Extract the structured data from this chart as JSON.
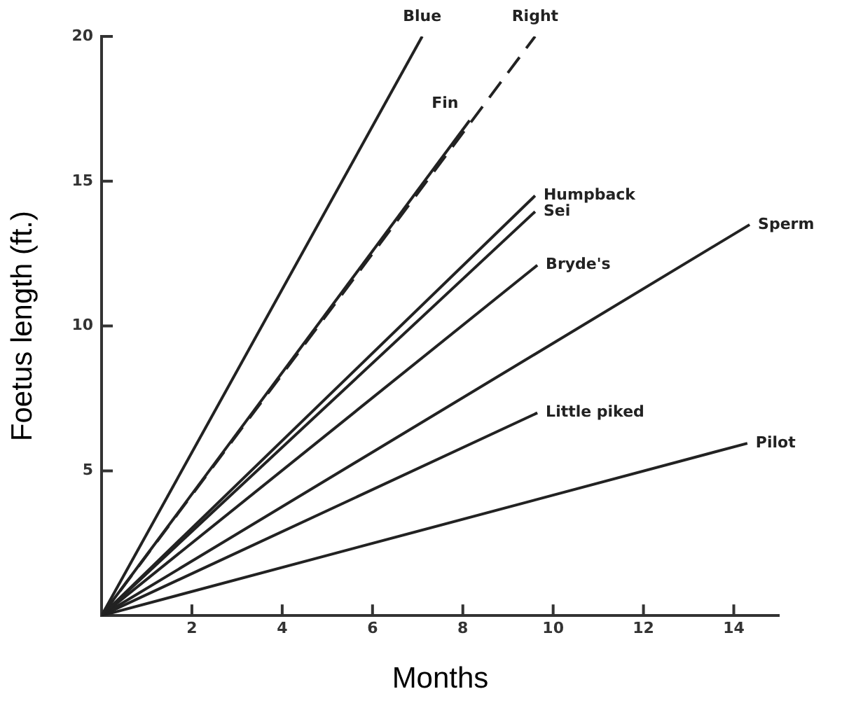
{
  "chart_data": {
    "type": "line",
    "xlabel": "Months",
    "ylabel": "Foetus length (ft.)",
    "xlim": [
      0,
      15
    ],
    "ylim": [
      0,
      20
    ],
    "xticks": [
      2,
      4,
      6,
      8,
      10,
      12,
      14
    ],
    "yticks": [
      5,
      10,
      15,
      20
    ],
    "grid": false,
    "legend": false,
    "marker": "none",
    "series": [
      {
        "name": "Blue",
        "color": "#222222",
        "x": [
          0,
          7.1
        ],
        "values": [
          0,
          20
        ]
      },
      {
        "name": "Right",
        "color": "#222222",
        "x": [
          0,
          9.6
        ],
        "values": [
          0,
          20
        ],
        "line_style": "dashed"
      },
      {
        "name": "Fin",
        "color": "#222222",
        "x": [
          0,
          8.15
        ],
        "values": [
          0,
          17.1
        ]
      },
      {
        "name": "Humpback",
        "color": "#222222",
        "x": [
          0,
          9.6
        ],
        "values": [
          0,
          14.5
        ]
      },
      {
        "name": "Sei",
        "color": "#222222",
        "x": [
          0,
          9.6
        ],
        "values": [
          0,
          13.95
        ]
      },
      {
        "name": "Bryde's",
        "color": "#222222",
        "x": [
          0,
          9.65
        ],
        "values": [
          0,
          12.1
        ]
      },
      {
        "name": "Sperm",
        "color": "#222222",
        "x": [
          0,
          14.35
        ],
        "values": [
          0,
          13.5
        ]
      },
      {
        "name": "Little piked",
        "color": "#222222",
        "x": [
          0,
          9.65
        ],
        "values": [
          0,
          7
        ]
      },
      {
        "name": "Pilot",
        "color": "#222222",
        "x": [
          0,
          14.3
        ],
        "values": [
          0,
          5.95
        ]
      }
    ]
  }
}
